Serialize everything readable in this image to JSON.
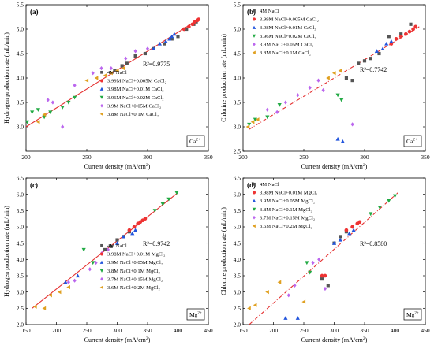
{
  "chart_data": [
    {
      "type": "scatter",
      "panel_label": "(a)",
      "ion": "Ca",
      "ion_charge": "2+",
      "xlabel": "Current density (mA/cm",
      "xlabel_sup": "2",
      "xlabel_tail": ")",
      "ylabel": "Hydrogen production rate (mL/min)",
      "xlim": [
        200,
        350
      ],
      "ylim": [
        2.5,
        5.5
      ],
      "xticks": [
        200,
        250,
        300,
        350
      ],
      "yticks": [
        3.0,
        3.5,
        4.0,
        4.5,
        5.0,
        5.5
      ],
      "r2": "R²=0.9775",
      "fit": {
        "x": [
          200,
          342
        ],
        "y": [
          3.0,
          5.2
        ],
        "style": "solid"
      },
      "series": [
        {
          "name": "4M NaCl",
          "marker": "square",
          "color": "#555555",
          "x": [
            273,
            279,
            283,
            290,
            298,
            305,
            314,
            320,
            325,
            332,
            338,
            340
          ],
          "y": [
            4.15,
            4.25,
            4.3,
            4.45,
            4.5,
            4.6,
            4.7,
            4.8,
            4.85,
            5.0,
            5.1,
            5.15
          ]
        },
        {
          "name": "3.99M NaCl+0.005M CaCl₂",
          "marker": "circle",
          "color": "#ee3333",
          "x": [
            330,
            334,
            337,
            339,
            341,
            342
          ],
          "y": [
            5.0,
            5.05,
            5.1,
            5.15,
            5.18,
            5.2
          ]
        },
        {
          "name": "3.98M NaCl+0.01M CaCl₂",
          "marker": "triangle-up",
          "color": "#2255dd",
          "x": [
            305,
            310,
            315,
            318,
            320,
            322
          ],
          "y": [
            4.6,
            4.7,
            4.75,
            4.8,
            4.85,
            4.9
          ]
        },
        {
          "name": "3.96M NaCl+0.02M CaCl₂",
          "marker": "triangle-down",
          "color": "#22aa44",
          "x": [
            201,
            205,
            210,
            215,
            220,
            230,
            235,
            240
          ],
          "y": [
            3.1,
            3.3,
            3.35,
            3.2,
            3.3,
            3.4,
            3.5,
            3.6
          ]
        },
        {
          "name": "3.9M NaCl+0.05M CaCl₂",
          "marker": "diamond",
          "color": "#bb66ee",
          "x": [
            218,
            222,
            230,
            240,
            255,
            262,
            270,
            282,
            290,
            300
          ],
          "y": [
            3.55,
            3.5,
            3.0,
            3.85,
            4.1,
            4.2,
            4.2,
            4.4,
            4.55,
            4.6
          ]
        },
        {
          "name": "3.8M NaCl+0.1M CaCl₂",
          "marker": "tri-left",
          "color": "#e0a020",
          "x": [
            210,
            215,
            250,
            258,
            265,
            270,
            275,
            280
          ],
          "y": [
            3.1,
            3.25,
            3.95,
            4.0,
            4.05,
            4.1,
            4.15,
            4.2
          ]
        }
      ]
    },
    {
      "type": "scatter",
      "panel_label": "(b)",
      "ion": "Ca",
      "ion_charge": "2+",
      "xlabel": "Current density (mA/cm",
      "xlabel_sup": "2",
      "xlabel_tail": ")",
      "ylabel": "Chlorine production rate (mL/min)",
      "xlim": [
        200,
        350
      ],
      "ylim": [
        2.5,
        5.5
      ],
      "xticks": [
        200,
        250,
        300,
        350
      ],
      "yticks": [
        2.5,
        3.0,
        3.5,
        4.0,
        4.5,
        5.0,
        5.5
      ],
      "r2": "R²=0.7742",
      "fit": {
        "x": [
          205,
          345
        ],
        "y": [
          2.95,
          5.05
        ],
        "style": "dashdot"
      },
      "series": [
        {
          "name": "4M NaCl",
          "marker": "square",
          "color": "#555555",
          "x": [
            285,
            290,
            295,
            300,
            305,
            312,
            320,
            330,
            338
          ],
          "y": [
            4.0,
            3.95,
            4.3,
            4.35,
            4.4,
            4.5,
            4.85,
            4.9,
            5.1
          ]
        },
        {
          "name": "3.99M NaCl+0.005M CaCl₂",
          "marker": "circle",
          "color": "#ee3333",
          "x": [
            322,
            326,
            330,
            334,
            337,
            340,
            342
          ],
          "y": [
            4.7,
            4.8,
            4.85,
            4.9,
            4.95,
            5.0,
            5.05
          ]
        },
        {
          "name": "3.98M NaCl+0.01M CaCl₂",
          "marker": "triangle-up",
          "color": "#2255dd",
          "x": [
            278,
            282,
            310,
            315,
            318,
            322
          ],
          "y": [
            2.75,
            2.7,
            4.55,
            4.6,
            4.7,
            4.75
          ]
        },
        {
          "name": "3.96M NaCl+0.02M CaCl₂",
          "marker": "triangle-down",
          "color": "#22aa44",
          "x": [
            205,
            210,
            220,
            230,
            278,
            281
          ],
          "y": [
            3.05,
            3.15,
            3.2,
            3.45,
            3.65,
            3.55
          ]
        },
        {
          "name": "3.9M NaCl+0.05M CaCl₂",
          "marker": "diamond",
          "color": "#bb66ee",
          "x": [
            220,
            228,
            235,
            245,
            255,
            262,
            266,
            290
          ],
          "y": [
            3.35,
            3.3,
            3.5,
            3.65,
            3.8,
            3.95,
            3.75,
            3.05
          ]
        },
        {
          "name": "3.8M NaCl+0.1M CaCl₂",
          "marker": "tri-left",
          "color": "#e0a020",
          "x": [
            204,
            208,
            212,
            270,
            275,
            280
          ],
          "y": [
            3.0,
            3.1,
            3.15,
            4.0,
            4.1,
            4.15
          ]
        }
      ]
    },
    {
      "type": "scatter",
      "panel_label": "(c)",
      "ion": "Mg",
      "ion_charge": "2+",
      "xlabel": "Current density (mA/cm",
      "xlabel_sup": "2",
      "xlabel_tail": ")",
      "ylabel": "Hydrogen production rate (mL/min)",
      "xlim": [
        150,
        450
      ],
      "ylim": [
        2.0,
        6.5
      ],
      "xticks": [
        150,
        200,
        250,
        300,
        350,
        400,
        450
      ],
      "yticks": [
        2.0,
        2.5,
        3.0,
        3.5,
        4.0,
        4.5,
        5.0,
        5.5,
        6.0,
        6.5
      ],
      "r2": "R²=0.9742",
      "fit": {
        "x": [
          160,
          400
        ],
        "y": [
          2.5,
          6.05
        ],
        "style": "solid"
      },
      "series": [
        {
          "name": "4M NaCl",
          "marker": "square",
          "color": "#555555",
          "x": [
            280,
            290,
            300,
            310,
            320
          ],
          "y": [
            4.3,
            4.4,
            4.6,
            4.7,
            4.85
          ]
        },
        {
          "name": "3.98M NaCl+0.01M MgCl₂",
          "marker": "circle",
          "color": "#ee3333",
          "x": [
            320,
            328,
            334,
            338,
            342,
            346
          ],
          "y": [
            4.9,
            5.0,
            5.1,
            5.15,
            5.2,
            5.25
          ]
        },
        {
          "name": "3.9M NaCl+0.05M MgCl₂",
          "marker": "triangle-up",
          "color": "#2255dd",
          "x": [
            215,
            235,
            300,
            310,
            325,
            330
          ],
          "y": [
            3.3,
            3.5,
            4.5,
            4.7,
            4.8,
            4.9
          ]
        },
        {
          "name": "3.8M NaCl+0.1M MgCl₂",
          "marker": "triangle-down",
          "color": "#22aa44",
          "x": [
            245,
            260,
            362,
            375,
            385,
            398
          ],
          "y": [
            4.3,
            3.9,
            5.5,
            5.7,
            5.85,
            6.05
          ]
        },
        {
          "name": "3.7M NaCl+0.15M MgCl₂",
          "marker": "diamond",
          "color": "#bb66ee",
          "x": [
            220,
            230,
            255,
            265,
            275,
            285
          ],
          "y": [
            3.3,
            3.35,
            3.7,
            3.9,
            4.2,
            4.3
          ]
        },
        {
          "name": "3.6M NaCl+0.2M MgCl₂",
          "marker": "tri-left",
          "color": "#e0a020",
          "x": [
            165,
            180,
            190,
            205,
            220
          ],
          "y": [
            2.55,
            2.5,
            2.9,
            3.0,
            3.15
          ]
        }
      ]
    },
    {
      "type": "scatter",
      "panel_label": "(d)",
      "ion": "Mg",
      "ion_charge": "2+",
      "xlabel": "Current density (mA/cm",
      "xlabel_sup": "2",
      "xlabel_tail": ")",
      "ylabel": "Chlorine production rate (mL/min)",
      "xlim": [
        150,
        450
      ],
      "ylim": [
        2.0,
        6.5
      ],
      "xticks": [
        150,
        200,
        250,
        300,
        350,
        400,
        450
      ],
      "yticks": [
        2.0,
        2.5,
        3.0,
        3.5,
        4.0,
        4.5,
        5.0,
        5.5,
        6.0,
        6.5
      ],
      "r2": "R²=0.8580",
      "fit": {
        "x": [
          160,
          405
        ],
        "y": [
          2.0,
          6.05
        ],
        "style": "dashdot"
      },
      "series": [
        {
          "name": "4M NaCl",
          "marker": "square",
          "color": "#555555",
          "x": [
            280,
            290,
            300,
            310,
            320
          ],
          "y": [
            3.4,
            3.2,
            4.5,
            4.7,
            4.85
          ]
        },
        {
          "name": "3.98M NaCl+0.01M MgCl₂",
          "marker": "circle",
          "color": "#ee3333",
          "x": [
            280,
            285,
            320,
            330,
            338,
            342
          ],
          "y": [
            3.5,
            3.5,
            4.9,
            5.0,
            5.1,
            5.15
          ]
        },
        {
          "name": "3.9M NaCl+0.05M MgCl₂",
          "marker": "triangle-up",
          "color": "#2255dd",
          "x": [
            220,
            240,
            300,
            310,
            325,
            332
          ],
          "y": [
            2.2,
            2.2,
            4.5,
            4.6,
            4.8,
            4.9
          ]
        },
        {
          "name": "3.8M NaCl+0.1M MgCl₂",
          "marker": "triangle-down",
          "color": "#22aa44",
          "x": [
            255,
            260,
            360,
            375,
            390,
            400
          ],
          "y": [
            3.9,
            3.6,
            5.4,
            5.6,
            5.8,
            5.95
          ]
        },
        {
          "name": "3.7M NaCl+0.15M MgCl₂",
          "marker": "diamond",
          "color": "#bb66ee",
          "x": [
            225,
            235,
            265,
            275,
            285
          ],
          "y": [
            2.9,
            3.2,
            3.9,
            4.0,
            3.1
          ]
        },
        {
          "name": "3.6M NaCl+0.2M MgCl₂",
          "marker": "tri-left",
          "color": "#e0a020",
          "x": [
            160,
            170,
            190,
            210,
            250
          ],
          "y": [
            2.5,
            2.6,
            3.0,
            3.3,
            2.7
          ]
        }
      ]
    }
  ]
}
